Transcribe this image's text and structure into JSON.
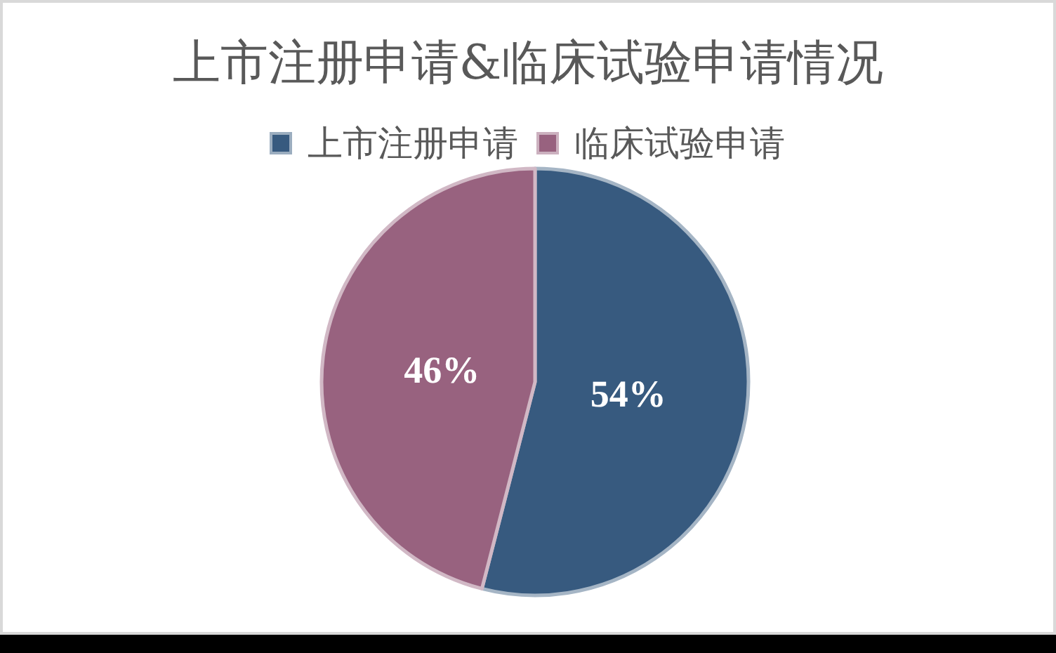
{
  "chart_data": {
    "type": "pie",
    "title": "上市注册申请&临床试验申请情况",
    "categories": [
      "上市注册申请",
      "临床试验申请"
    ],
    "values": [
      54,
      46
    ],
    "colors": [
      "#375a7f",
      "#98627f"
    ],
    "value_labels": [
      "54%",
      "46%"
    ],
    "legend": "top"
  }
}
